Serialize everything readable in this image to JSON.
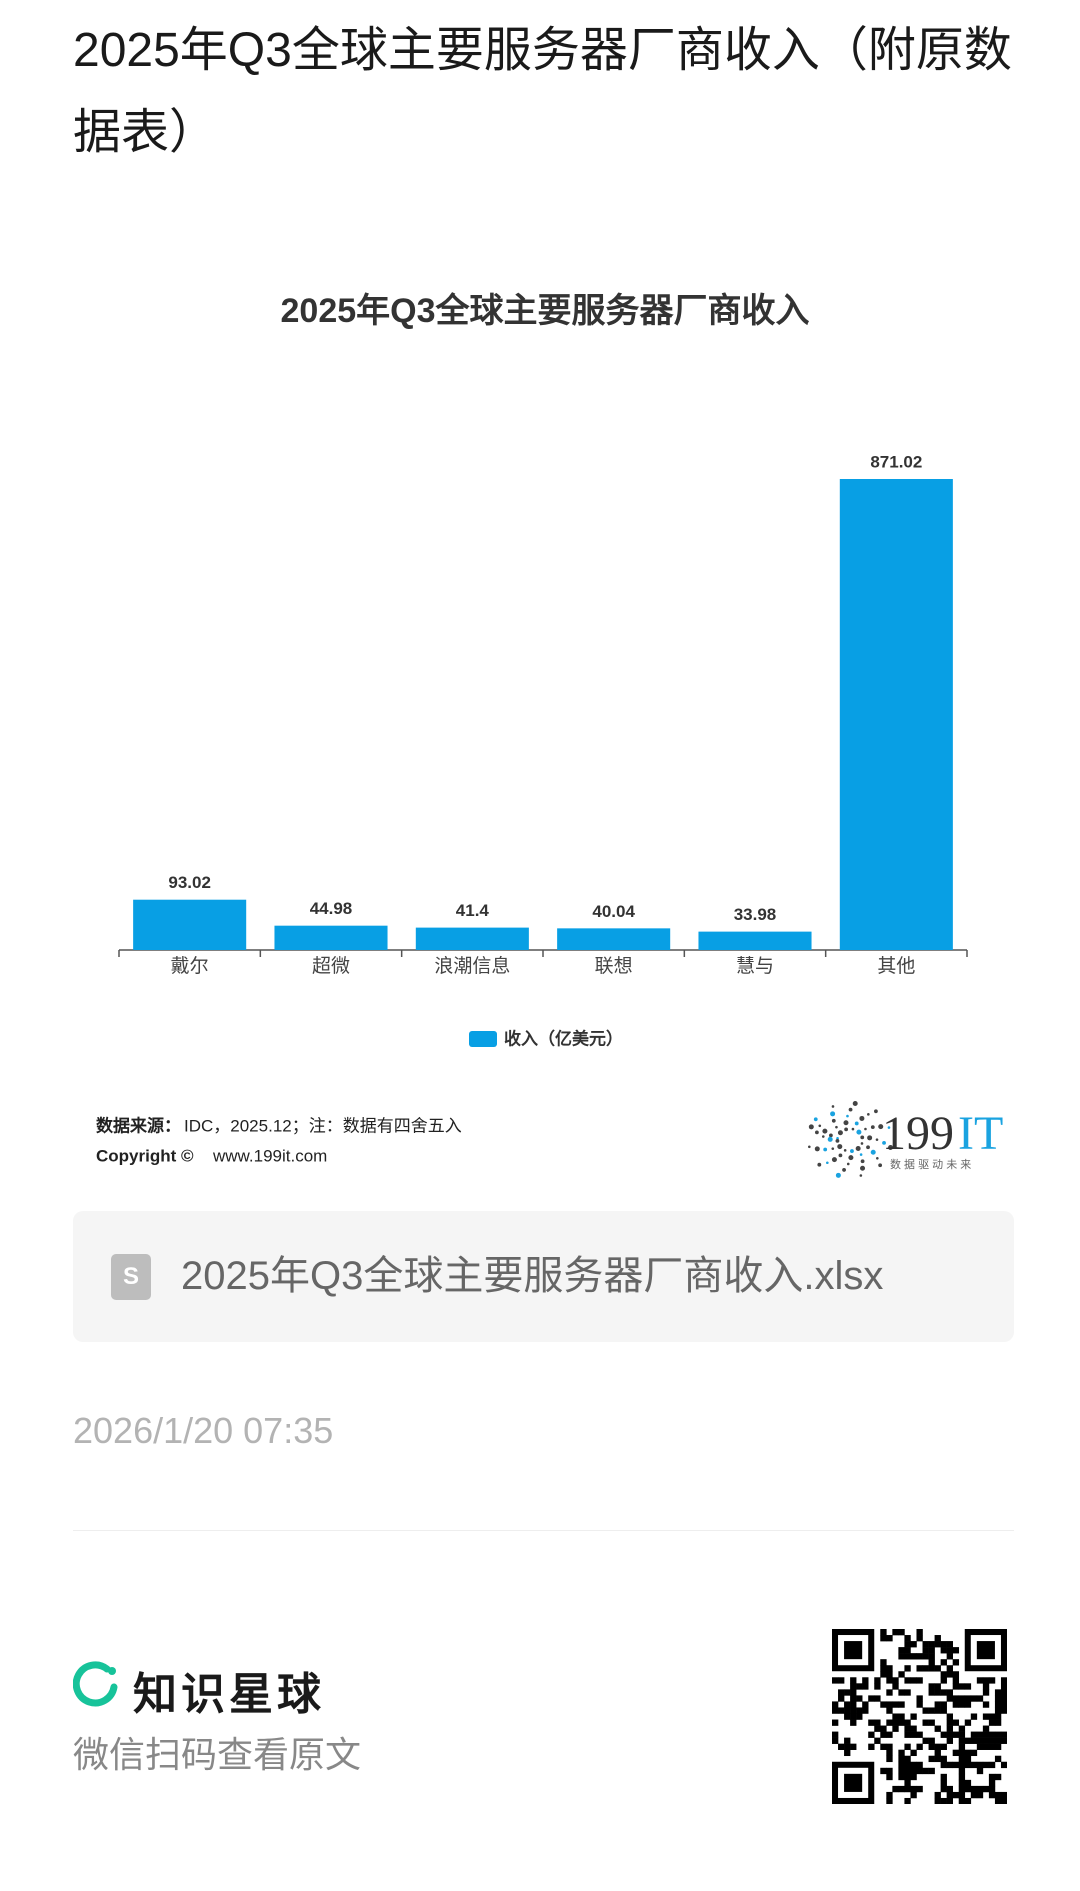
{
  "page_title": "2025年Q3全球主要服务器厂商收入（附原数据表）",
  "chart_data": {
    "type": "bar",
    "title": "2025年Q3全球主要服务器厂商收入",
    "categories": [
      "戴尔",
      "超微",
      "浪潮信息",
      "联想",
      "慧与",
      "其他"
    ],
    "series": [
      {
        "name": "收入（亿美元）",
        "color": "#089fe4",
        "values": [
          93.02,
          44.98,
          41.4,
          40.04,
          33.98,
          871.02
        ]
      }
    ]
  },
  "source": {
    "label": "数据来源：",
    "text": "IDC，2025.12；注：数据有四舍五入"
  },
  "copyright": {
    "label": "Copyright ©",
    "text": "www.199it.com"
  },
  "logo": {
    "number": "199",
    "suffix": "IT",
    "slogan": "数 据 驱 动 未 来"
  },
  "attachment": {
    "icon": "S",
    "filename": "2025年Q3全球主要服务器厂商收入.xlsx"
  },
  "date": "2026/1/20 07:35",
  "footer": {
    "brand": "知识星球",
    "caption": "微信扫码查看原文"
  }
}
